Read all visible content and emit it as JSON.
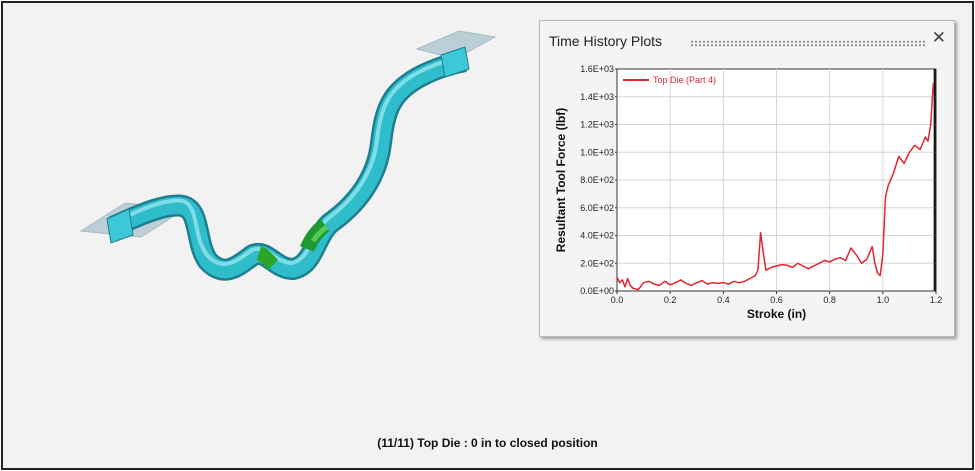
{
  "status_text": "(11/11) Top Die : 0 in to closed position",
  "plot_window": {
    "title": "Time History Plots",
    "close_icon": "close-icon"
  },
  "chart_data": {
    "type": "line",
    "title": "",
    "xlabel": "Stroke (in)",
    "ylabel": "Resultant Tool Force (lbf)",
    "xlim": [
      0,
      1.2
    ],
    "ylim": [
      0,
      1600
    ],
    "x_ticks": [
      "0.0",
      "0.2",
      "0.4",
      "0.6",
      "0.8",
      "1.0",
      "1.2"
    ],
    "x_tick_values": [
      0,
      0.2,
      0.4,
      0.6,
      0.8,
      1.0,
      1.2
    ],
    "y_ticks": [
      "0.0E+00",
      "2.0E+02",
      "4.0E+02",
      "6.0E+02",
      "8.0E+02",
      "1.0E+03",
      "1.2E+03",
      "1.4E+03",
      "1.6E+03"
    ],
    "y_tick_values": [
      0,
      200,
      400,
      600,
      800,
      1000,
      1200,
      1400,
      1600
    ],
    "grid": true,
    "legend_position": "top-left",
    "current_marker_x": 1.195,
    "series": [
      {
        "name": "Top Die (Part 4)",
        "color": "#e0262e",
        "x": [
          0.0,
          0.01,
          0.02,
          0.03,
          0.04,
          0.05,
          0.06,
          0.08,
          0.1,
          0.12,
          0.14,
          0.16,
          0.18,
          0.2,
          0.22,
          0.24,
          0.26,
          0.28,
          0.3,
          0.32,
          0.34,
          0.36,
          0.38,
          0.4,
          0.42,
          0.44,
          0.46,
          0.48,
          0.5,
          0.52,
          0.53,
          0.54,
          0.55,
          0.56,
          0.58,
          0.6,
          0.62,
          0.64,
          0.66,
          0.68,
          0.7,
          0.72,
          0.74,
          0.76,
          0.78,
          0.8,
          0.82,
          0.84,
          0.86,
          0.88,
          0.9,
          0.92,
          0.94,
          0.96,
          0.97,
          0.98,
          0.99,
          1.0,
          1.01,
          1.02,
          1.04,
          1.06,
          1.08,
          1.1,
          1.12,
          1.14,
          1.16,
          1.17,
          1.18,
          1.19
        ],
        "values": [
          100,
          60,
          80,
          30,
          90,
          40,
          20,
          10,
          60,
          70,
          50,
          40,
          70,
          45,
          60,
          80,
          55,
          40,
          60,
          75,
          50,
          60,
          55,
          60,
          50,
          70,
          60,
          70,
          90,
          110,
          150,
          420,
          280,
          150,
          170,
          180,
          190,
          185,
          170,
          200,
          180,
          160,
          180,
          200,
          220,
          210,
          230,
          240,
          220,
          310,
          260,
          200,
          230,
          320,
          200,
          130,
          110,
          260,
          680,
          760,
          850,
          970,
          920,
          1000,
          1050,
          1020,
          1110,
          1080,
          1200,
          1500
        ]
      }
    ]
  }
}
